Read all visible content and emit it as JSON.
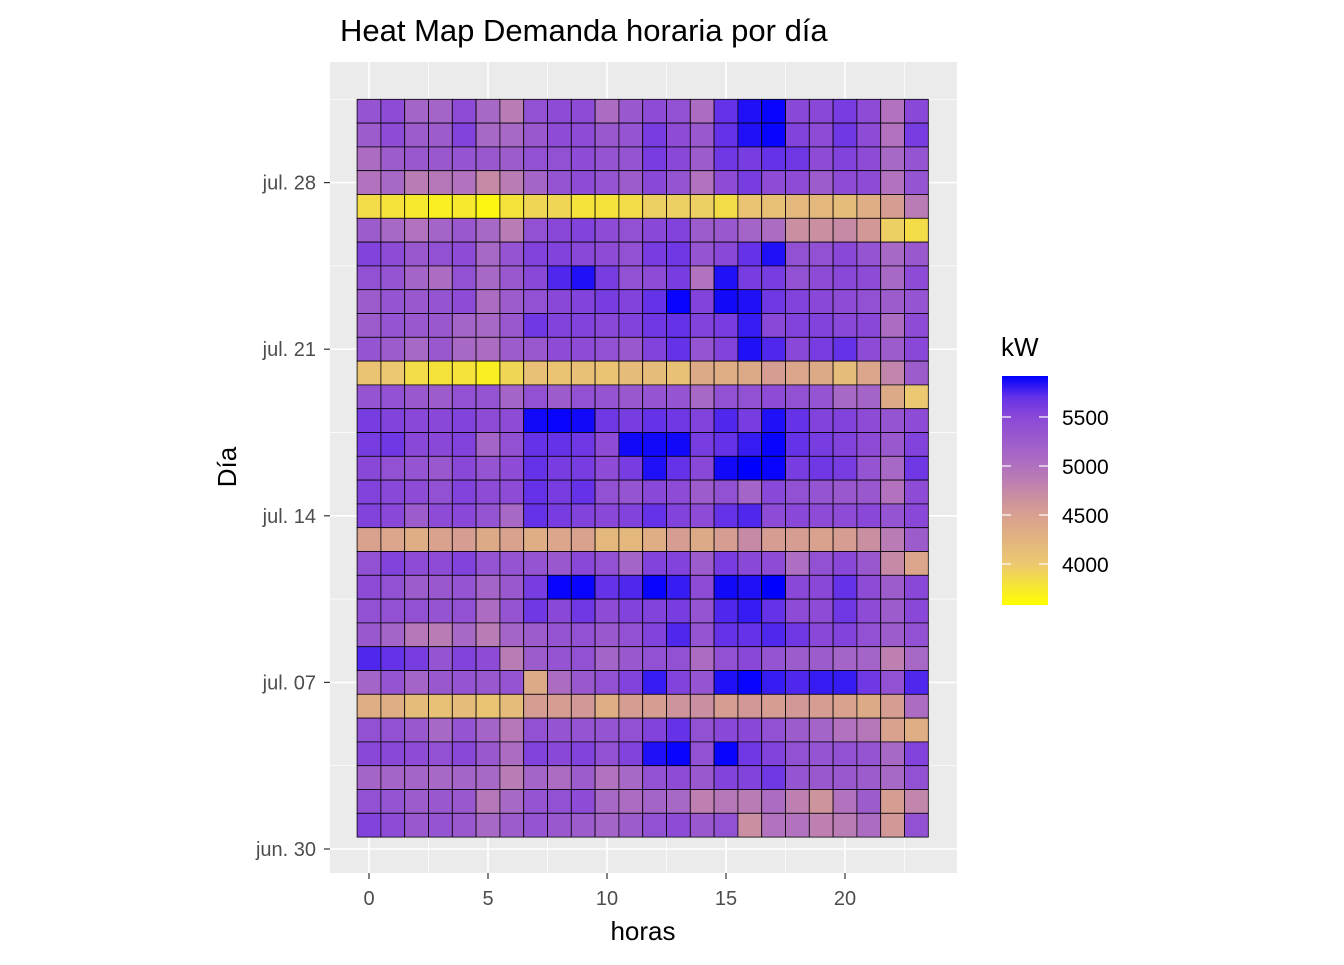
{
  "chart_data": {
    "type": "heatmap",
    "title": "Heat Map Demanda horaria por día",
    "xlabel": "horas",
    "ylabel": "Día",
    "x": [
      0,
      1,
      2,
      3,
      4,
      5,
      6,
      7,
      8,
      9,
      10,
      11,
      12,
      13,
      14,
      15,
      16,
      17,
      18,
      19,
      20,
      21,
      22,
      23
    ],
    "x_ticks": [
      0,
      5,
      10,
      15,
      20
    ],
    "x_tick_labels": [
      "0",
      "5",
      "10",
      "15",
      "20"
    ],
    "y_tick_labels": [
      "jun. 30",
      "jul. 07",
      "jul. 14",
      "jul. 21",
      "jul. 28"
    ],
    "y_tick_days": [
      0,
      7,
      14,
      21,
      28
    ],
    "y_days_top_to_bottom": [
      31,
      30,
      29,
      28,
      27,
      26,
      25,
      24,
      23,
      22,
      21,
      20,
      19,
      18,
      17,
      16,
      15,
      14,
      13,
      12,
      11,
      10,
      9,
      8,
      7,
      6,
      5,
      4,
      3,
      2,
      1
    ],
    "y_range_days": [
      -0.5,
      31.5
    ],
    "x_range": [
      -1.6,
      24.6
    ],
    "legend": {
      "title": "kW",
      "ticks": [
        5500,
        5000,
        4500,
        4000
      ],
      "tick_labels": [
        "5500",
        "5000",
        "4500",
        "4000"
      ],
      "range": [
        3582,
        5918
      ],
      "position": "right"
    },
    "colors": {
      "low": "#ffff00",
      "high": "#0000ff",
      "stops": [
        [
          3582,
          "#ffff00"
        ],
        [
          4000,
          "#ecc870"
        ],
        [
          4500,
          "#d8a090"
        ],
        [
          5000,
          "#b070c0"
        ],
        [
          5500,
          "#8a48d8"
        ],
        [
          5700,
          "#6632e8"
        ],
        [
          5918,
          "#0000ff"
        ]
      ],
      "panel_bg": "#ebebeb",
      "grid": "#ffffff"
    },
    "z_rows_top_to_bottom": [
      [
        5350,
        5450,
        5150,
        5150,
        5450,
        5100,
        4880,
        5400,
        5450,
        5450,
        5050,
        5300,
        5450,
        5400,
        5050,
        5700,
        5850,
        5900,
        5500,
        5500,
        5600,
        5450,
        4980,
        5500
      ],
      [
        5250,
        5450,
        5250,
        5250,
        5550,
        5100,
        5100,
        5300,
        5450,
        5450,
        5300,
        5350,
        5600,
        5450,
        5300,
        5700,
        5850,
        5900,
        5550,
        5450,
        5650,
        5450,
        4980,
        5600
      ],
      [
        5050,
        5250,
        5300,
        5300,
        5350,
        5300,
        5250,
        5400,
        5400,
        5450,
        5350,
        5350,
        5600,
        5500,
        5250,
        5650,
        5600,
        5700,
        5650,
        5450,
        5550,
        5450,
        5100,
        5350
      ],
      [
        4980,
        5100,
        4880,
        4930,
        4980,
        4730,
        4880,
        5150,
        5350,
        5450,
        5350,
        5250,
        5500,
        5350,
        4980,
        5450,
        5600,
        5450,
        5450,
        5250,
        5450,
        5450,
        4980,
        5350
      ],
      [
        3850,
        3800,
        3750,
        3700,
        3750,
        3650,
        3800,
        3900,
        3900,
        3800,
        3800,
        3850,
        3950,
        3950,
        3950,
        3850,
        4050,
        4100,
        4200,
        4200,
        4150,
        4330,
        4530,
        4880
      ],
      [
        5250,
        5100,
        4980,
        5150,
        5300,
        5100,
        4880,
        5400,
        5500,
        5550,
        5450,
        5400,
        5500,
        5550,
        5250,
        5300,
        5150,
        5050,
        4680,
        4680,
        4730,
        4580,
        3950,
        3850
      ],
      [
        5550,
        5450,
        5300,
        5400,
        5450,
        5100,
        5350,
        5550,
        5550,
        5500,
        5450,
        5400,
        5600,
        5650,
        5350,
        5500,
        5700,
        5850,
        5400,
        5400,
        5500,
        5350,
        5100,
        5300
      ],
      [
        5400,
        5350,
        5150,
        5050,
        5400,
        5100,
        5300,
        5500,
        5750,
        5850,
        5600,
        5400,
        5450,
        5600,
        4980,
        5850,
        5600,
        5600,
        5400,
        5450,
        5500,
        5450,
        5100,
        5450
      ],
      [
        5250,
        5350,
        5300,
        5350,
        5450,
        5050,
        5250,
        5400,
        5500,
        5550,
        5600,
        5550,
        5700,
        5900,
        5550,
        5880,
        5850,
        5650,
        5550,
        5500,
        5450,
        5400,
        5250,
        5350
      ],
      [
        5250,
        5350,
        5300,
        5300,
        5150,
        5100,
        5300,
        5650,
        5550,
        5550,
        5500,
        5550,
        5650,
        5700,
        5550,
        5600,
        5800,
        5500,
        5550,
        5550,
        5500,
        5500,
        5050,
        5450
      ],
      [
        5350,
        5250,
        5100,
        5300,
        5100,
        5050,
        5250,
        5300,
        5450,
        5450,
        5400,
        5300,
        5550,
        5700,
        5350,
        5550,
        5850,
        5750,
        5500,
        5600,
        5700,
        5450,
        5250,
        5500
      ],
      [
        4050,
        4000,
        3850,
        3800,
        3800,
        3700,
        3900,
        4100,
        4050,
        4100,
        4050,
        4150,
        4150,
        4100,
        4380,
        4330,
        4380,
        4530,
        4430,
        4380,
        4150,
        4430,
        4780,
        5250
      ],
      [
        5350,
        5400,
        5300,
        5250,
        5400,
        5350,
        5150,
        5400,
        5250,
        5400,
        5350,
        5300,
        5350,
        5350,
        5100,
        5400,
        5400,
        5450,
        5400,
        5350,
        5100,
        5150,
        4380,
        4000
      ],
      [
        5600,
        5550,
        5500,
        5500,
        5550,
        5450,
        5450,
        5880,
        5900,
        5880,
        5650,
        5600,
        5700,
        5650,
        5550,
        5750,
        5600,
        5850,
        5700,
        5550,
        5550,
        5450,
        5350,
        5450
      ],
      [
        5600,
        5650,
        5500,
        5500,
        5550,
        5150,
        5400,
        5700,
        5700,
        5650,
        5450,
        5880,
        5880,
        5880,
        5600,
        5700,
        5800,
        5900,
        5700,
        5600,
        5550,
        5450,
        5300,
        5550
      ],
      [
        5500,
        5400,
        5350,
        5300,
        5500,
        5350,
        5450,
        5700,
        5600,
        5600,
        5450,
        5600,
        5850,
        5700,
        5500,
        5880,
        5918,
        5900,
        5600,
        5650,
        5600,
        5350,
        5100,
        5650
      ],
      [
        5550,
        5500,
        5450,
        5400,
        5550,
        5450,
        5450,
        5700,
        5600,
        5700,
        5400,
        5350,
        5500,
        5450,
        5250,
        5400,
        5150,
        5500,
        5400,
        5350,
        5300,
        5300,
        4980,
        5450
      ],
      [
        5550,
        5500,
        5250,
        5450,
        5500,
        5350,
        5100,
        5700,
        5600,
        5550,
        5500,
        5550,
        5700,
        5550,
        5450,
        5700,
        5750,
        5450,
        5500,
        5450,
        5450,
        5500,
        5350,
        5500
      ],
      [
        4480,
        4430,
        4330,
        4480,
        4530,
        4380,
        4480,
        4330,
        4430,
        4480,
        4200,
        4200,
        4330,
        4530,
        4380,
        4530,
        4730,
        4530,
        4530,
        4480,
        4530,
        4680,
        4880,
        5250
      ],
      [
        5400,
        5550,
        5450,
        5450,
        5550,
        5350,
        5350,
        5350,
        5300,
        5500,
        5400,
        5150,
        5550,
        5550,
        5250,
        5600,
        5500,
        5450,
        5030,
        5400,
        5500,
        5300,
        4730,
        4430
      ],
      [
        5450,
        5400,
        5250,
        5300,
        5350,
        5150,
        5300,
        5600,
        5900,
        5900,
        5700,
        5750,
        5900,
        5800,
        5450,
        5880,
        5850,
        5918,
        5500,
        5500,
        5700,
        5450,
        5250,
        5500
      ],
      [
        5400,
        5400,
        5400,
        5350,
        5400,
        5050,
        5350,
        5650,
        5500,
        5650,
        5450,
        5550,
        5550,
        5600,
        5350,
        5750,
        5800,
        5700,
        5450,
        5450,
        5650,
        5450,
        5250,
        5500
      ],
      [
        5300,
        5150,
        4930,
        4880,
        5100,
        4880,
        5150,
        5250,
        5350,
        5400,
        5300,
        5400,
        5550,
        5750,
        5350,
        5700,
        5700,
        5750,
        5650,
        5500,
        5550,
        5400,
        5250,
        5400
      ],
      [
        5750,
        5700,
        5600,
        5350,
        5550,
        5450,
        4880,
        5250,
        5350,
        5400,
        5150,
        5300,
        5400,
        5400,
        5050,
        5400,
        5500,
        5350,
        5250,
        5250,
        5150,
        5150,
        4830,
        5100
      ],
      [
        5150,
        5350,
        5150,
        5300,
        5350,
        5300,
        5350,
        4380,
        5050,
        5300,
        5400,
        5550,
        5800,
        5550,
        5350,
        5850,
        5900,
        5800,
        5750,
        5800,
        5800,
        5650,
        5400,
        5750
      ],
      [
        4330,
        4330,
        4150,
        4100,
        4150,
        4050,
        4150,
        4530,
        4530,
        4580,
        4330,
        4530,
        4530,
        4630,
        4680,
        4530,
        4580,
        4530,
        4580,
        4530,
        4480,
        4380,
        4530,
        5050
      ],
      [
        5400,
        5400,
        5300,
        5100,
        5350,
        5150,
        4930,
        5400,
        5350,
        5350,
        5350,
        5400,
        5550,
        5700,
        5400,
        5500,
        5500,
        5400,
        5250,
        5150,
        4980,
        4930,
        4480,
        4330
      ],
      [
        5500,
        5500,
        5450,
        5400,
        5500,
        5300,
        5050,
        5550,
        5500,
        5550,
        5400,
        5550,
        5850,
        5900,
        5400,
        5900,
        5650,
        5550,
        5400,
        5350,
        5400,
        5350,
        5100,
        5550
      ],
      [
        5150,
        5150,
        5150,
        5100,
        5150,
        5100,
        4880,
        5150,
        5050,
        5250,
        4980,
        5100,
        5400,
        5450,
        5300,
        5550,
        5550,
        5650,
        5350,
        5300,
        5300,
        5250,
        5100,
        5400
      ],
      [
        5400,
        5350,
        5250,
        5300,
        5300,
        4930,
        5100,
        5350,
        5400,
        5450,
        5100,
        5050,
        5150,
        5100,
        4830,
        4930,
        4880,
        5050,
        4830,
        4630,
        4980,
        5250,
        4530,
        4780
      ],
      [
        5550,
        5450,
        5300,
        5350,
        5300,
        5100,
        5250,
        5350,
        5300,
        5250,
        5150,
        5250,
        5400,
        5450,
        5300,
        5400,
        4680,
        4980,
        4980,
        4830,
        4880,
        5050,
        4580,
        5400
      ]
    ]
  }
}
